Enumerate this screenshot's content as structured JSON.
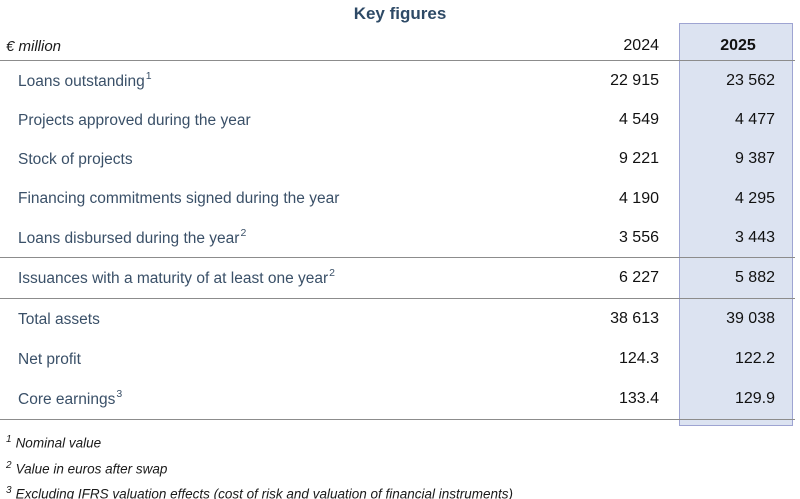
{
  "colors": {
    "title_text": "#2E4A66",
    "row_label_text": "#3A5068",
    "value_text": "#111111",
    "highlight_fill": "#DCE3F1",
    "highlight_border": "#9EA4D2",
    "divider_line": "#8C8C8C"
  },
  "chart_data": {
    "type": "table",
    "title": "Key figures",
    "unit_label": "€ million",
    "columns": {
      "y2024": "2024",
      "y2025": "2025"
    },
    "highlighted_column": "2025",
    "rows": [
      {
        "label": "Loans outstanding",
        "sup": "1",
        "v2024": "22 915",
        "v2025": "23 562"
      },
      {
        "label": "Projects approved during the year",
        "sup": "",
        "v2024": "4 549",
        "v2025": "4 477"
      },
      {
        "label": "Stock of projects",
        "sup": "",
        "v2024": "9 221",
        "v2025": "9 387"
      },
      {
        "label": "Financing commitments signed during the year",
        "sup": "",
        "v2024": "4 190",
        "v2025": "4 295"
      },
      {
        "label": "Loans disbursed during the year",
        "sup": "2",
        "v2024": "3 556",
        "v2025": "3 443"
      },
      {
        "label": "Issuances with a maturity of at least one year",
        "sup": "2",
        "v2024": "6 227",
        "v2025": "5 882"
      },
      {
        "label": "Total assets",
        "sup": "",
        "v2024": "38 613",
        "v2025": "39 038"
      },
      {
        "label": "Net profit",
        "sup": "",
        "v2024": "124.3",
        "v2025": "122.2"
      },
      {
        "label": "Core earnings",
        "sup": "3",
        "v2024": "133.4",
        "v2025": "129.9"
      }
    ],
    "footnotes": [
      {
        "sup": "1",
        "text": "Nominal value"
      },
      {
        "sup": "2",
        "text": "Value in euros after swap"
      },
      {
        "sup": "3",
        "text": "Excluding IFRS valuation effects (cost of risk and valuation of financial instruments)"
      }
    ]
  }
}
